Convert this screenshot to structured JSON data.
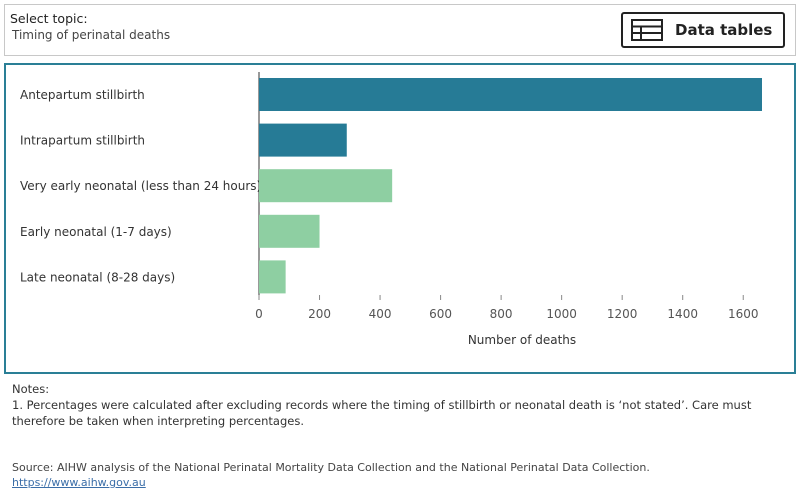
{
  "topic": {
    "label": "Select topic:",
    "value": "Timing of perinatal deaths"
  },
  "data_tables_button": {
    "label": "Data tables",
    "icon": "table-icon"
  },
  "chart_data": {
    "type": "bar",
    "orientation": "horizontal",
    "categories": [
      "Antepartum stillbirth",
      "Intrapartum stillbirth",
      "Very early neonatal (less than 24 hours)",
      "Early neonatal (1-7 days)",
      "Late neonatal (8-28 days)"
    ],
    "values": [
      1662,
      290,
      440,
      200,
      88
    ],
    "colors": [
      "#267b96",
      "#267b96",
      "#8ecfa2",
      "#8ecfa2",
      "#8ecfa2"
    ],
    "xlabel": "Number of deaths",
    "xlim": [
      0,
      1700
    ],
    "xticks": [
      0,
      200,
      400,
      600,
      800,
      1000,
      1200,
      1400,
      1600
    ],
    "grid": false
  },
  "notes": {
    "title": "Notes:",
    "items": [
      "1. Percentages were calculated after excluding records where the timing of stillbirth or neonatal death is ‘not stated’. Care must therefore be taken when interpreting percentages."
    ]
  },
  "source": {
    "text": "Source: AIHW analysis of the National Perinatal Mortality Data Collection and the National Perinatal Data Collection.",
    "link": "https://www.aihw.gov.au"
  }
}
